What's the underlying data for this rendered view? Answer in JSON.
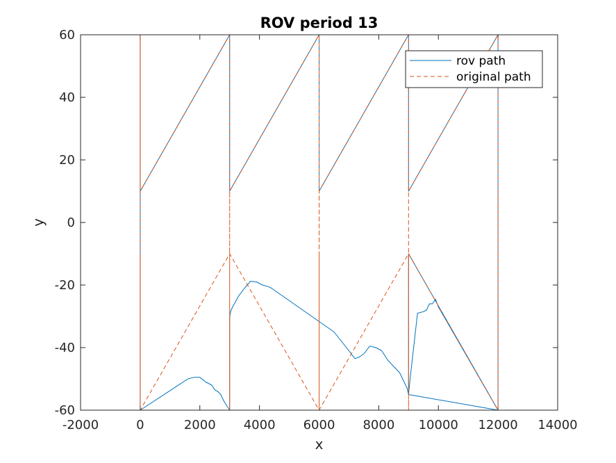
{
  "chart_data": {
    "type": "line",
    "title": "ROV period 13",
    "xlabel": "x",
    "ylabel": "y",
    "xlim": [
      -2000,
      14000
    ],
    "ylim": [
      -60,
      60
    ],
    "xticks": [
      -2000,
      0,
      2000,
      4000,
      6000,
      8000,
      10000,
      12000,
      14000
    ],
    "yticks": [
      -60,
      -40,
      -20,
      0,
      20,
      40,
      60
    ],
    "xtick_labels": [
      "-2000",
      "0",
      "2000",
      "4000",
      "6000",
      "8000",
      "10000",
      "12000",
      "14000"
    ],
    "ytick_labels": [
      "-60",
      "-40",
      "-20",
      "0",
      "20",
      "40",
      "60"
    ],
    "grid": false,
    "legend_position": "top-right",
    "series": [
      {
        "name": "rov path",
        "color": "#0072BD",
        "style": "solid",
        "x": [
          0,
          0,
          0,
          3000,
          3000,
          3000,
          6000,
          6000,
          6000,
          9000,
          9000,
          9000,
          12000,
          12000,
          12000,
          12000,
          9000,
          9000,
          9050,
          9300,
          9500,
          9600,
          9700,
          9800,
          9900,
          10000,
          12000,
          12000,
          9000,
          8950,
          8850,
          8700,
          8500,
          8300,
          8100,
          7900,
          7700,
          7500,
          7350,
          7200,
          7000,
          6500,
          4400,
          4300,
          4100,
          3900,
          3700,
          3500,
          3300,
          3100,
          3050,
          3000,
          3000,
          2800,
          2700,
          2600,
          2500,
          2400,
          2200,
          2000,
          1800,
          1600,
          0,
          0,
          0
        ],
        "y": [
          -10,
          60,
          10,
          60,
          60,
          10,
          60,
          60,
          10,
          60,
          60,
          10,
          60,
          60,
          10,
          -60,
          -10,
          -55,
          -50,
          -29,
          -28.5,
          -28,
          -26,
          -26,
          -24.5,
          -27,
          -60,
          -60,
          -55,
          -53,
          -51,
          -48,
          -46,
          -44,
          -41,
          -40,
          -39.5,
          -42,
          -43,
          -43.5,
          -41,
          -35,
          -21,
          -20.5,
          -20,
          -19,
          -18.8,
          -21,
          -23.5,
          -27,
          -28,
          -30,
          -60,
          -57,
          -55,
          -54,
          -53.5,
          -52,
          -51,
          -49.5,
          -49.5,
          -50,
          -60,
          -10,
          -60
        ]
      },
      {
        "name": "original path",
        "color": "#D95319",
        "style": "dashed",
        "x": [
          0,
          0,
          0,
          3000,
          3000,
          3000,
          6000,
          6000,
          6000,
          9000,
          9000,
          9000,
          12000,
          12000,
          12000,
          12000,
          9000,
          9000,
          9000,
          6000,
          6000,
          6000,
          3000,
          3000,
          3000,
          0,
          0,
          0
        ],
        "y": [
          -60,
          60,
          10,
          60,
          -60,
          10,
          60,
          -60,
          10,
          60,
          -60,
          10,
          60,
          -60,
          10,
          -60,
          -10,
          -60,
          -10,
          -60,
          -10,
          -60,
          -10,
          -60,
          -10,
          -60,
          -10,
          -60
        ]
      }
    ]
  }
}
